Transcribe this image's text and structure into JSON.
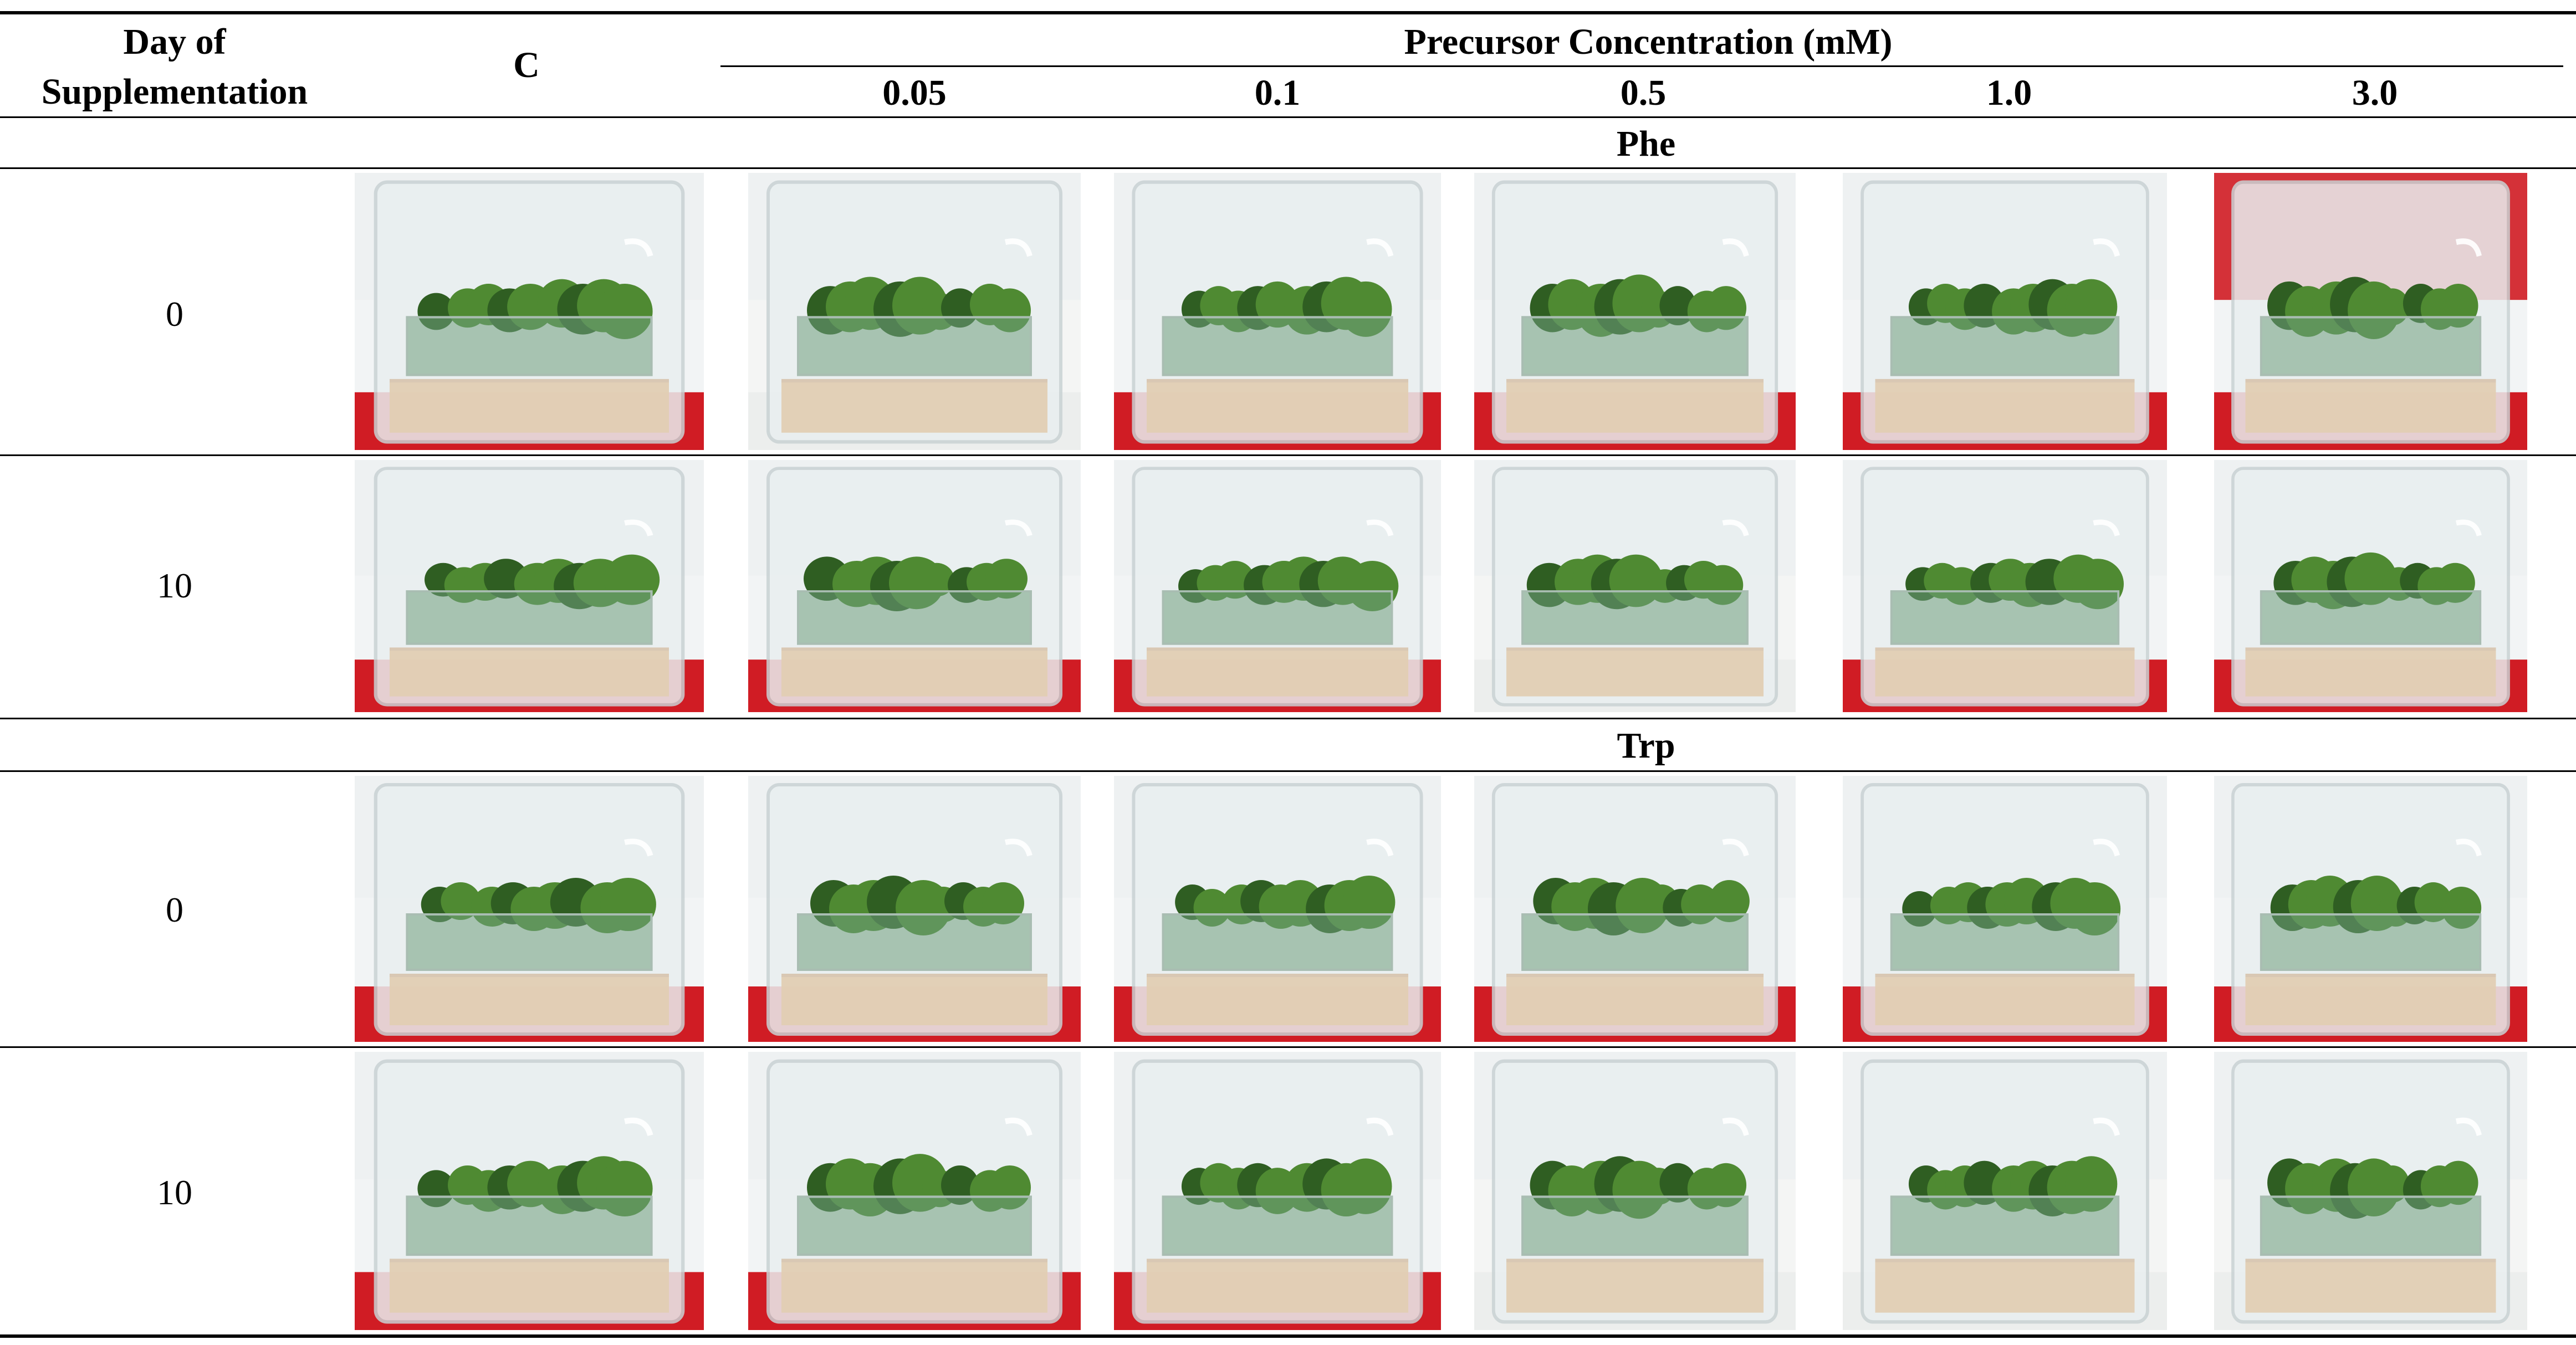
{
  "header": {
    "day_label_line1": "Day of",
    "day_label_line2": "Supplementation",
    "control_label": "C",
    "precursor_title": "Precursor Concentration (mM)",
    "concentrations": [
      "0.05",
      "0.1",
      "0.5",
      "1.0",
      "3.0"
    ]
  },
  "groups": [
    {
      "name": "Phe",
      "rows": [
        {
          "day": "0",
          "photos": [
            "red-bg",
            "white-bg",
            "red-bg",
            "red-bg",
            "red-bg",
            "red-top"
          ]
        },
        {
          "day": "10",
          "photos": [
            "red-bg",
            "red-bg",
            "red-bg",
            "white-bg",
            "red-bg",
            "red-bg"
          ]
        }
      ]
    },
    {
      "name": "Trp",
      "rows": [
        {
          "day": "0",
          "photos": [
            "red-bg",
            "red-bg",
            "red-bg",
            "red-bg",
            "red-bg",
            "red-bg"
          ]
        },
        {
          "day": "10",
          "photos": [
            "red-bg",
            "red-bg",
            "red-bg",
            "white-bg",
            "white-bg",
            "white-bg"
          ]
        }
      ]
    }
  ],
  "colors": {
    "moss": "#4f8a32",
    "moss_dark": "#2f5e22",
    "red_bg": "#d01c24",
    "medium": "#e2cdb3",
    "plastic": "#e9eff0"
  }
}
